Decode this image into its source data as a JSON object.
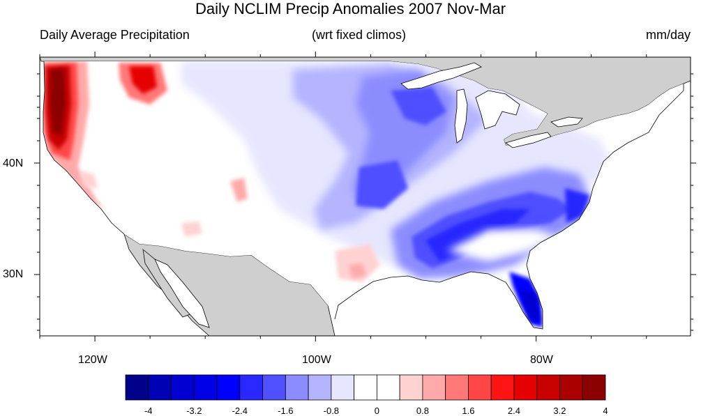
{
  "title": "Daily NCLIM Precip Anomalies 2007 Nov-Mar",
  "subtitle_left": "Daily Average Precipitation",
  "subtitle_center": "(wrt fixed climos)",
  "subtitle_right": "mm/day",
  "axes": {
    "lon_labels": [
      "120W",
      "100W",
      "80W"
    ],
    "lat_labels": [
      "40N",
      "30N"
    ]
  },
  "colorbar": {
    "labels": [
      "-4",
      "-3.2",
      "-2.4",
      "-1.6",
      "-0.8",
      "0",
      "0.8",
      "1.6",
      "2.4",
      "3.2",
      "4"
    ],
    "colors": [
      "#00008b",
      "#0000b4",
      "#0000d2",
      "#0000e6",
      "#0000ff",
      "#2828ff",
      "#5050ff",
      "#8c8cff",
      "#b4b4ff",
      "#e6e6ff",
      "#ffffff",
      "#ffffff",
      "#ffd2d2",
      "#ffaaaa",
      "#ff7878",
      "#ff4646",
      "#ff1414",
      "#e60000",
      "#c80000",
      "#aa0000",
      "#8b0000"
    ]
  },
  "chart_data": {
    "type": "heatmap",
    "variable": "Daily Average Precipitation anomaly",
    "units": "mm/day",
    "period": "2007 Nov-Mar",
    "lon_range": [
      -125,
      -66
    ],
    "lat_range": [
      24.5,
      49.5
    ],
    "color_levels": [
      -4,
      -3.6,
      -3.2,
      -2.8,
      -2.4,
      -2.0,
      -1.6,
      -1.2,
      -0.8,
      -0.4,
      0,
      0.4,
      0.8,
      1.2,
      1.6,
      2.0,
      2.4,
      2.8,
      3.2,
      3.6,
      4
    ]
  }
}
